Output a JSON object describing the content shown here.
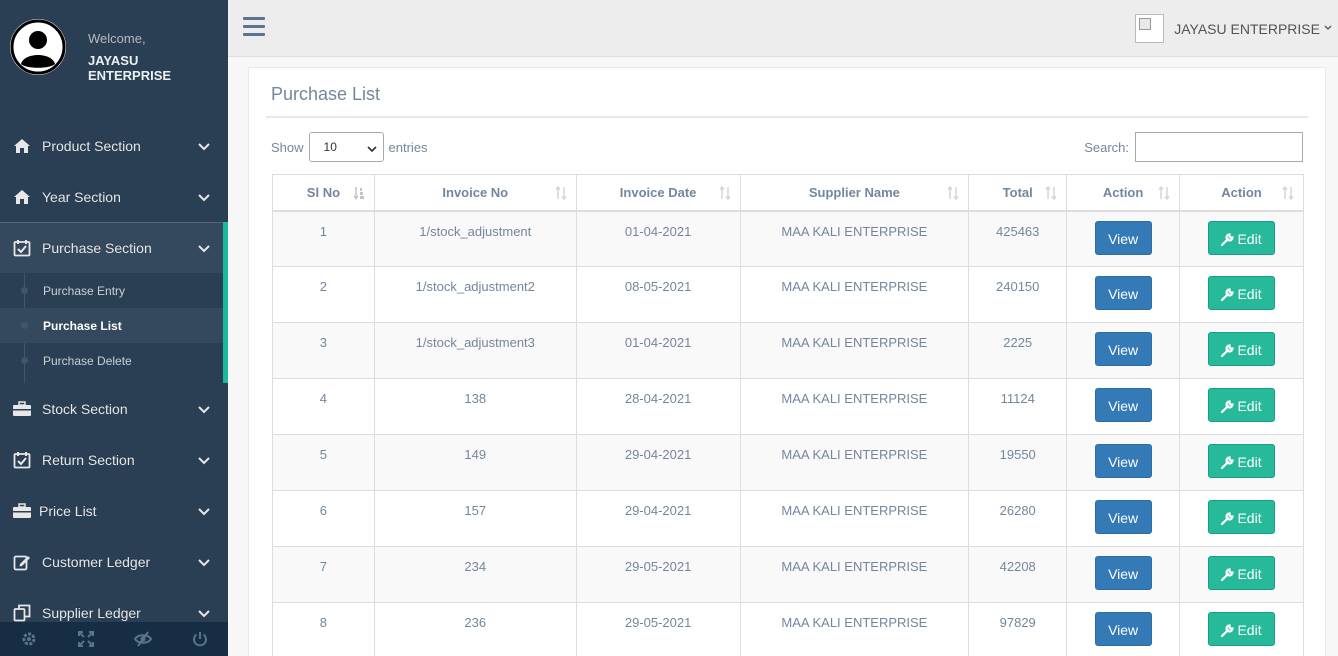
{
  "profile": {
    "welcome": "Welcome,",
    "name": "JAYASU ENTERPRISE"
  },
  "sidebar": {
    "items": [
      {
        "label": "Product Section",
        "icon": "home-icon"
      },
      {
        "label": "Year Section",
        "icon": "home-icon"
      },
      {
        "label": "Purchase Section",
        "icon": "calendar-check-icon"
      },
      {
        "label": "Stock Section",
        "icon": "briefcase-icon"
      },
      {
        "label": "Return Section",
        "icon": "calendar-check-icon"
      },
      {
        "label": "Price List",
        "icon": "briefcase-icon"
      },
      {
        "label": "Customer Ledger",
        "icon": "edit-icon"
      },
      {
        "label": "Supplier Ledger",
        "icon": "copy-icon"
      }
    ],
    "submenu": [
      {
        "label": "Purchase Entry"
      },
      {
        "label": "Purchase List"
      },
      {
        "label": "Purchase Delete"
      }
    ],
    "footer_icons": [
      "settings-icon",
      "fullscreen-icon",
      "eye-slash-icon",
      "power-icon"
    ]
  },
  "topnav": {
    "user": "JAYASU ENTERPRISE"
  },
  "panel": {
    "title": "Purchase List"
  },
  "controls": {
    "show_label": "Show",
    "entries_value": "10",
    "entries_label": "entries",
    "search_label": "Search:"
  },
  "table": {
    "headers": [
      "Sl No",
      "Invoice No",
      "Invoice Date",
      "Supplier Name",
      "Total",
      "Action",
      "Action"
    ],
    "view_label": "View",
    "edit_label": "Edit",
    "rows": [
      {
        "sl": "1",
        "invoice": "1/stock_adjustment",
        "date": "01-04-2021",
        "supplier": "MAA KALI ENTERPRISE",
        "total": "425463"
      },
      {
        "sl": "2",
        "invoice": "1/stock_adjustment2",
        "date": "08-05-2021",
        "supplier": "MAA KALI ENTERPRISE",
        "total": "240150"
      },
      {
        "sl": "3",
        "invoice": "1/stock_adjustment3",
        "date": "01-04-2021",
        "supplier": "MAA KALI ENTERPRISE",
        "total": "2225"
      },
      {
        "sl": "4",
        "invoice": "138",
        "date": "28-04-2021",
        "supplier": "MAA KALI ENTERPRISE",
        "total": "11124"
      },
      {
        "sl": "5",
        "invoice": "149",
        "date": "29-04-2021",
        "supplier": "MAA KALI ENTERPRISE",
        "total": "19550"
      },
      {
        "sl": "6",
        "invoice": "157",
        "date": "29-04-2021",
        "supplier": "MAA KALI ENTERPRISE",
        "total": "26280"
      },
      {
        "sl": "7",
        "invoice": "234",
        "date": "29-05-2021",
        "supplier": "MAA KALI ENTERPRISE",
        "total": "42208"
      },
      {
        "sl": "8",
        "invoice": "236",
        "date": "29-05-2021",
        "supplier": "MAA KALI ENTERPRISE",
        "total": "97829"
      }
    ]
  },
  "colors": {
    "sidebar_bg": "#2A3F54",
    "accent": "#1ABB9C",
    "view_button": "#337AB7",
    "edit_button": "#26B99A"
  }
}
